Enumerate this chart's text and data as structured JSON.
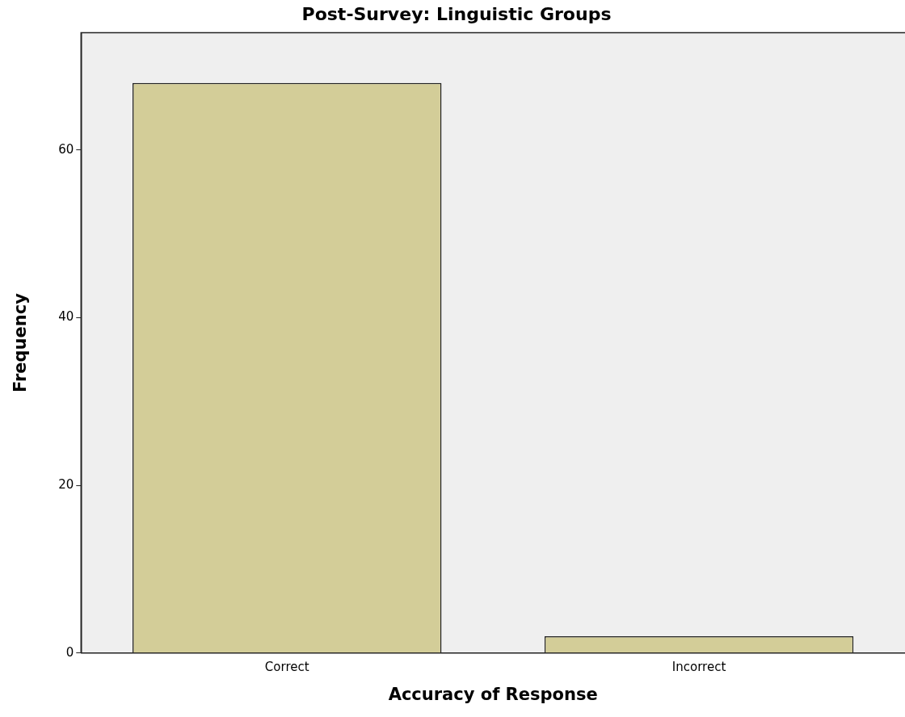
{
  "chart_data": {
    "type": "bar",
    "title": "Post-Survey: Linguistic Groups",
    "xlabel": "Accuracy of Response",
    "ylabel": "Frequency",
    "categories": [
      "Correct",
      "Incorrect"
    ],
    "values": [
      68,
      2
    ],
    "color": "#d3cd98",
    "ylim": [
      0,
      74
    ],
    "yticks": [
      0,
      20,
      40,
      60
    ],
    "grid": false,
    "legend": false
  }
}
